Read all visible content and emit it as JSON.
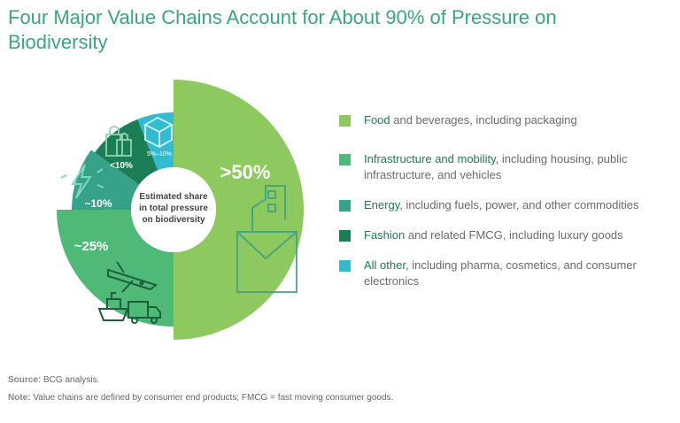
{
  "title": "Four Major Value Chains Account for About 90% of Pressure on Biodiversity",
  "center_label": [
    "Estimated share",
    "in total pressure",
    "on biodiversity"
  ],
  "chart_data": {
    "type": "pie",
    "title": "Four Major Value Chains Account for About 90% of Pressure on Biodiversity",
    "subtitle": "Estimated share in total pressure on biodiversity",
    "slices": [
      {
        "label": "Food",
        "value": 50,
        "display": ">50%",
        "color": "#8dc95f"
      },
      {
        "label": "Infrastructure and mobility",
        "value": 25,
        "display": "~25%",
        "color": "#4fb978"
      },
      {
        "label": "Energy",
        "value": 10,
        "display": "~10%",
        "color": "#35a289"
      },
      {
        "label": "Fashion",
        "value": 9,
        "display": "<10%",
        "color": "#1c7e57"
      },
      {
        "label": "All other",
        "value": 6,
        "display": "5%–10%",
        "color": "#33bcd1"
      }
    ]
  },
  "legend": [
    {
      "key": "Food",
      "rest": " and beverages, including packaging",
      "color": "#8dc95f"
    },
    {
      "key": "Infrastructure and mobility,",
      "rest": " including housing, public infrastructure, and vehicles",
      "color": "#4fb978"
    },
    {
      "key": "Energy,",
      "rest": " including fuels, power, and other commodities",
      "color": "#35a289"
    },
    {
      "key": "Fashion",
      "rest": " and related FMCG, including luxury goods",
      "color": "#1c7e57"
    },
    {
      "key": "All other,",
      "rest": " including pharma, cosmetics, and consumer electronics",
      "color": "#33bcd1"
    }
  ],
  "footer": {
    "source_label": "Source:",
    "source_text": " BCG analysis.",
    "note_label": "Note:",
    "note_text": " Value chains are defined by consumer end products; FMCG = fast moving consumer goods."
  },
  "icons": [
    "food-icon",
    "plane-icon",
    "ship-icon",
    "truck-icon",
    "lightning-icon",
    "shopping-bags-icon",
    "box-icon"
  ]
}
